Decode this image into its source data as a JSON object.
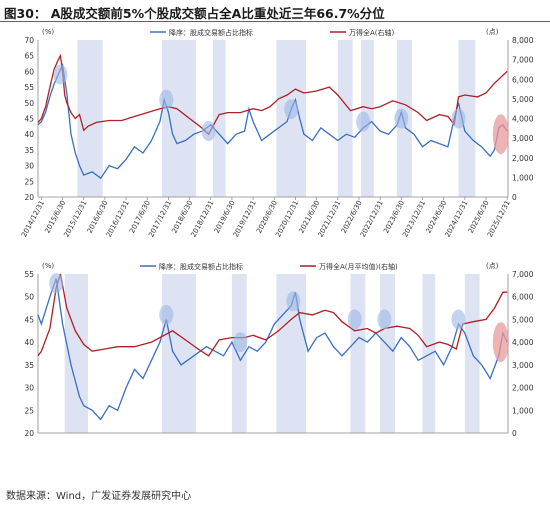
{
  "title": "图30： A股成交额前5%个股成交额占全A比重处近三年66.7%分位",
  "source": "数据来源：Wind，广发证券发展研究中心",
  "colors": {
    "blue_line": "#3a6fc2",
    "red_line": "#b01f24",
    "shade": "#dde3f3",
    "highlight_blue": "#9db8e6",
    "highlight_red": "#e89a9a",
    "title_rule": "#c23a3a"
  },
  "chart_data": [
    {
      "type": "line",
      "left_axis_unit": "(%)",
      "right_axis_unit": "(点)",
      "ylim": [
        20,
        70
      ],
      "y2lim": [
        0,
        8000
      ],
      "yticks": [
        "20",
        "25",
        "30",
        "35",
        "40",
        "45",
        "50",
        "55",
        "60",
        "65",
        "70"
      ],
      "y2ticks": [
        "0",
        "1,000",
        "2,000",
        "3,000",
        "4,000",
        "5,000",
        "6,000",
        "7,000",
        "8,000"
      ],
      "xlim": [
        2014.92,
        2026.02
      ],
      "xticks": [
        "2014/12/31",
        "2015/6/30",
        "2015/12/31",
        "2016/6/30",
        "2016/12/31",
        "2017/6/30",
        "2017/12/31",
        "2018/6/30",
        "2018/12/31",
        "2019/6/30",
        "2019/12/31",
        "2020/6/30",
        "2020/12/31",
        "2021/6/30",
        "2021/12/31",
        "2022/6/30",
        "2022/12/31",
        "2023/6/30",
        "2023/12/31",
        "2024/6/30",
        "2024/12/31",
        "2025/6/30",
        "2025/12/31"
      ],
      "shaded_periods": [
        [
          2015.85,
          2016.45
        ],
        [
          2017.85,
          2018.65
        ],
        [
          2019.05,
          2019.35
        ],
        [
          2020.55,
          2021.25
        ],
        [
          2022.0,
          2022.35
        ],
        [
          2022.55,
          2022.85
        ],
        [
          2023.4,
          2023.75
        ],
        [
          2024.85,
          2025.25
        ]
      ],
      "series": [
        {
          "name": "降序：股成交易额占比指标",
          "axis": "left",
          "x": [
            2014.92,
            2015.0,
            2015.1,
            2015.2,
            2015.3,
            2015.4,
            2015.5,
            2015.6,
            2015.7,
            2015.8,
            2015.9,
            2016.0,
            2016.2,
            2016.4,
            2016.6,
            2016.8,
            2017.0,
            2017.2,
            2017.4,
            2017.6,
            2017.8,
            2017.9,
            2018.0,
            2018.1,
            2018.2,
            2018.4,
            2018.6,
            2018.8,
            2019.0,
            2019.2,
            2019.4,
            2019.6,
            2019.8,
            2019.9,
            2020.0,
            2020.2,
            2020.4,
            2020.6,
            2020.8,
            2020.9,
            2021.0,
            2021.1,
            2021.2,
            2021.4,
            2021.6,
            2021.8,
            2022.0,
            2022.2,
            2022.4,
            2022.6,
            2022.8,
            2023.0,
            2023.2,
            2023.4,
            2023.5,
            2023.6,
            2023.8,
            2024.0,
            2024.2,
            2024.4,
            2024.6,
            2024.75,
            2024.85,
            2025.0,
            2025.2,
            2025.4,
            2025.6,
            2025.7,
            2025.8,
            2025.9,
            2026.0
          ],
          "values": [
            43,
            44,
            47,
            52,
            56,
            59,
            62,
            53,
            40,
            34,
            30,
            27,
            28,
            26,
            30,
            29,
            32,
            36,
            34,
            38,
            44,
            51,
            47,
            40,
            37,
            38,
            40,
            41,
            43,
            40,
            37,
            40,
            41,
            48,
            44,
            38,
            40,
            42,
            44,
            48,
            51,
            45,
            40,
            38,
            42,
            40,
            38,
            40,
            39,
            42,
            44,
            41,
            40,
            43,
            47,
            42,
            40,
            36,
            38,
            37,
            36,
            45,
            50,
            41,
            38,
            36,
            33,
            35,
            42,
            43,
            41
          ]
        },
        {
          "name": "万得全A(右轴)",
          "axis": "right",
          "x": [
            2014.92,
            2015.0,
            2015.1,
            2015.2,
            2015.3,
            2015.4,
            2015.45,
            2015.5,
            2015.55,
            2015.6,
            2015.7,
            2015.8,
            2015.9,
            2016.0,
            2016.1,
            2016.3,
            2016.6,
            2016.9,
            2017.2,
            2017.5,
            2017.8,
            2018.0,
            2018.2,
            2018.5,
            2018.8,
            2018.95,
            2019.2,
            2019.4,
            2019.7,
            2020.0,
            2020.2,
            2020.4,
            2020.6,
            2020.8,
            2021.0,
            2021.2,
            2021.5,
            2021.8,
            2022.0,
            2022.3,
            2022.6,
            2022.8,
            2023.0,
            2023.3,
            2023.6,
            2023.9,
            2024.1,
            2024.4,
            2024.6,
            2024.75,
            2024.85,
            2025.0,
            2025.3,
            2025.5,
            2025.7,
            2025.85,
            2026.0
          ],
          "values": [
            3800,
            4000,
            4600,
            5600,
            6500,
            7000,
            7200,
            6400,
            5200,
            4800,
            4300,
            4000,
            4200,
            3400,
            3600,
            3800,
            3900,
            3900,
            4100,
            4300,
            4500,
            4600,
            4500,
            4000,
            3500,
            3200,
            4200,
            4300,
            4300,
            4500,
            4400,
            4600,
            5000,
            5200,
            5500,
            5300,
            5400,
            5600,
            5200,
            4400,
            4600,
            4500,
            4600,
            4900,
            4700,
            4300,
            3900,
            4200,
            4100,
            3700,
            5100,
            5200,
            5100,
            5300,
            5800,
            6100,
            6400
          ]
        }
      ]
    },
    {
      "type": "line",
      "left_axis_unit": "(%)",
      "right_axis_unit": "(点)",
      "ylim": [
        20,
        55
      ],
      "y2lim": [
        0,
        7000
      ],
      "yticks": [
        "20",
        "25",
        "30",
        "35",
        "40",
        "45",
        "50",
        "55"
      ],
      "y2ticks": [
        "0",
        "1,000",
        "2,000",
        "3,000",
        "4,000",
        "5,000",
        "6,000",
        "7,000"
      ],
      "xlim": [
        2014.92,
        2026.02
      ],
      "shaded_periods": [
        [
          2015.55,
          2016.1
        ],
        [
          2017.85,
          2018.65
        ],
        [
          2019.5,
          2019.85
        ],
        [
          2020.55,
          2021.25
        ],
        [
          2022.3,
          2022.65
        ],
        [
          2023.0,
          2023.35
        ],
        [
          2024.0,
          2024.3
        ],
        [
          2025.0,
          2025.35
        ]
      ],
      "series": [
        {
          "name": "降序：股成交易额占比指标",
          "axis": "left",
          "x": [
            2014.92,
            2015.0,
            2015.2,
            2015.35,
            2015.5,
            2015.7,
            2015.9,
            2016.0,
            2016.2,
            2016.4,
            2016.6,
            2016.8,
            2017.0,
            2017.2,
            2017.4,
            2017.6,
            2017.8,
            2017.95,
            2018.1,
            2018.3,
            2018.6,
            2018.9,
            2019.1,
            2019.3,
            2019.5,
            2019.7,
            2019.9,
            2020.1,
            2020.3,
            2020.5,
            2020.7,
            2020.9,
            2021.0,
            2021.1,
            2021.3,
            2021.5,
            2021.7,
            2021.9,
            2022.1,
            2022.3,
            2022.5,
            2022.7,
            2022.9,
            2023.1,
            2023.3,
            2023.5,
            2023.7,
            2023.9,
            2024.1,
            2024.3,
            2024.5,
            2024.7,
            2024.85,
            2025.0,
            2025.2,
            2025.4,
            2025.6,
            2025.8,
            2025.9,
            2026.0
          ],
          "values": [
            46,
            44,
            50,
            54,
            44,
            35,
            28,
            26,
            25,
            23,
            26,
            25,
            30,
            34,
            32,
            36,
            40,
            45,
            38,
            35,
            37,
            39,
            38,
            37,
            40,
            36,
            39,
            38,
            40,
            44,
            46,
            48,
            51,
            45,
            38,
            41,
            42,
            39,
            37,
            39,
            41,
            40,
            42,
            40,
            38,
            41,
            39,
            36,
            37,
            38,
            35,
            39,
            44,
            42,
            37,
            35,
            32,
            37,
            42,
            40
          ]
        },
        {
          "name": "万得全A(月平均值)(右轴)",
          "axis": "right",
          "x": [
            2014.92,
            2015.0,
            2015.2,
            2015.35,
            2015.45,
            2015.6,
            2015.8,
            2016.0,
            2016.2,
            2016.5,
            2016.8,
            2017.2,
            2017.6,
            2017.9,
            2018.1,
            2018.4,
            2018.7,
            2018.95,
            2019.2,
            2019.5,
            2019.8,
            2020.0,
            2020.3,
            2020.6,
            2020.9,
            2021.1,
            2021.4,
            2021.7,
            2021.9,
            2022.1,
            2022.4,
            2022.7,
            2022.9,
            2023.1,
            2023.4,
            2023.7,
            2023.9,
            2024.1,
            2024.4,
            2024.6,
            2024.8,
            2024.95,
            2025.2,
            2025.5,
            2025.7,
            2025.9,
            2026.0
          ],
          "values": [
            3400,
            3600,
            4600,
            6400,
            7000,
            5500,
            4500,
            3900,
            3600,
            3700,
            3800,
            3800,
            4000,
            4300,
            4500,
            4100,
            3700,
            3400,
            4100,
            4200,
            4200,
            4300,
            4100,
            4500,
            5000,
            5300,
            5200,
            5400,
            5300,
            4900,
            4500,
            4600,
            4400,
            4600,
            4700,
            4600,
            4300,
            3800,
            4000,
            3900,
            3700,
            4800,
            4900,
            5000,
            5500,
            6200,
            6200
          ]
        }
      ]
    }
  ]
}
